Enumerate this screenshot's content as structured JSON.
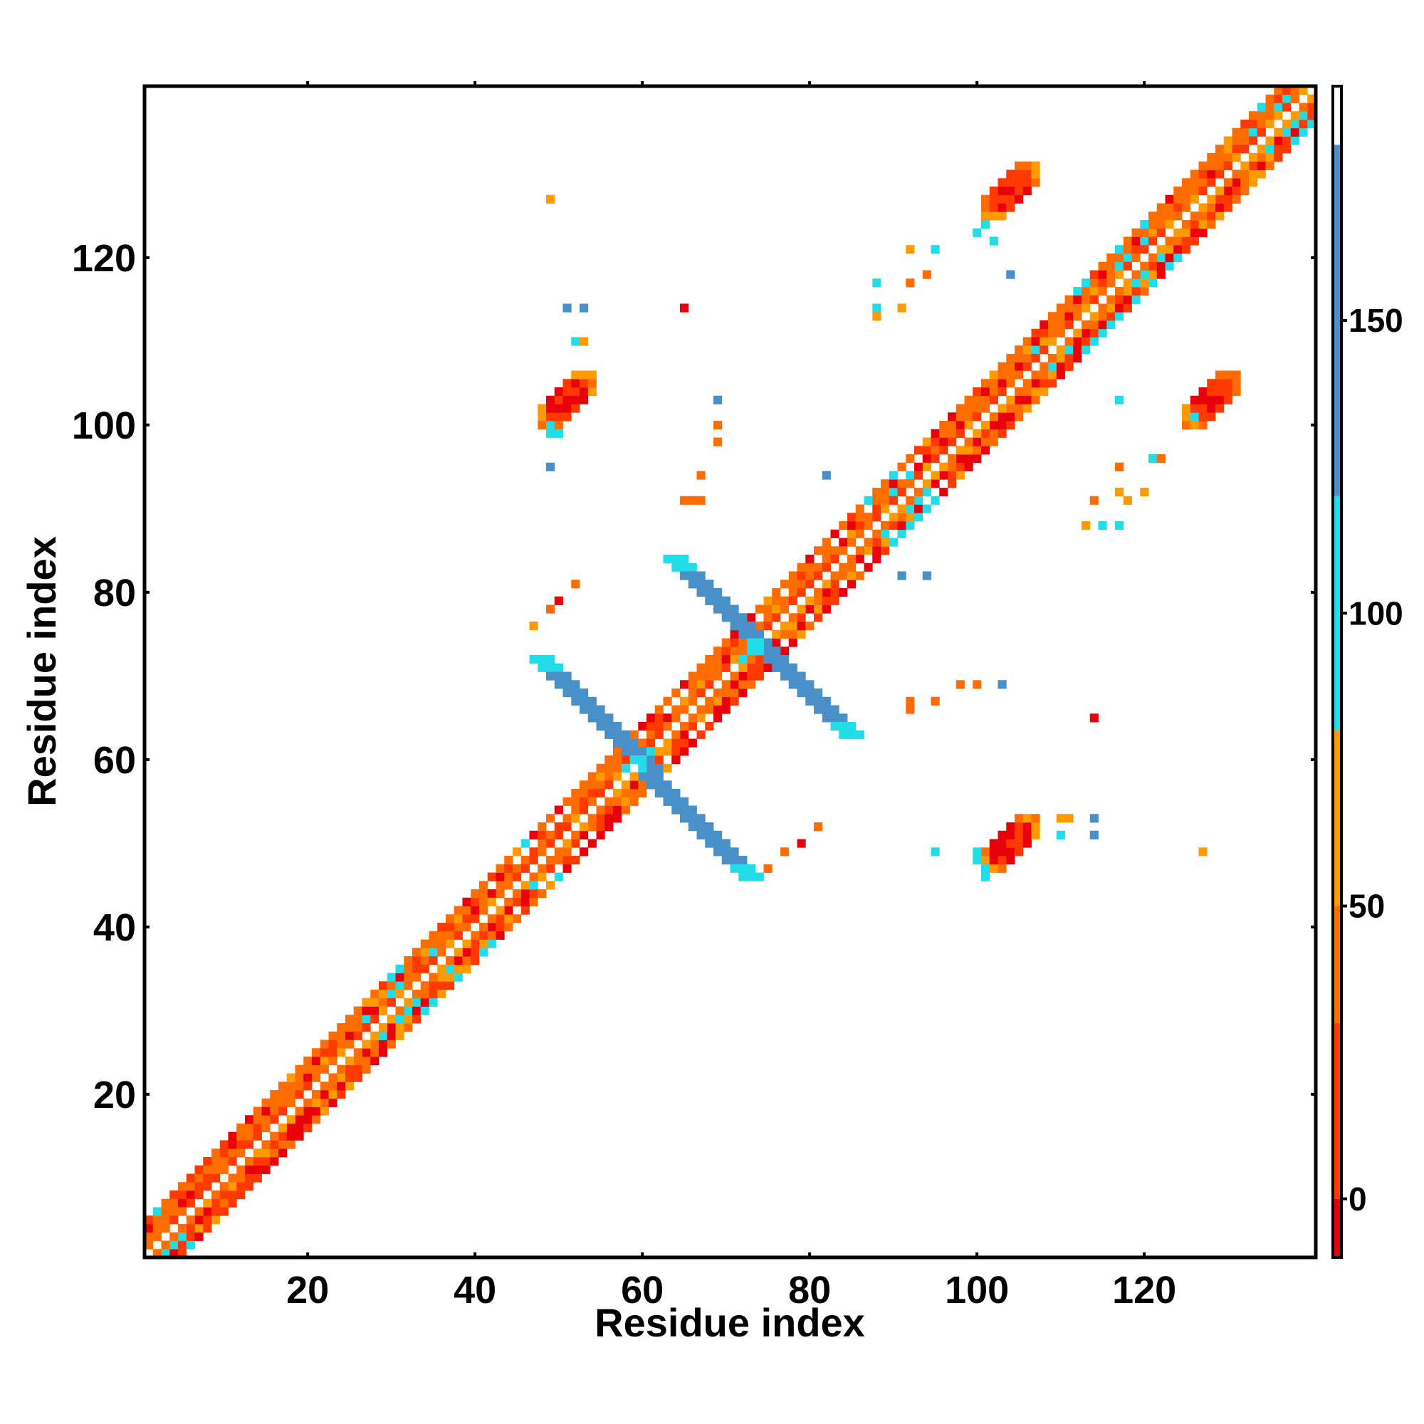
{
  "chart_data": {
    "type": "heatmap",
    "title": "",
    "xlabel": "Residue index",
    "ylabel": "Residue index",
    "xlim": [
      1,
      140
    ],
    "ylim": [
      1,
      140
    ],
    "x_ticks": [
      20,
      40,
      60,
      80,
      100,
      120
    ],
    "y_ticks": [
      20,
      40,
      60,
      80,
      100,
      120
    ],
    "grid": false,
    "legend": "colorbar on right",
    "colorbar": {
      "range": [
        -10,
        190
      ],
      "ticks": [
        0,
        50,
        100,
        150
      ],
      "bands": [
        {
          "from": -10,
          "to": 0,
          "color": "#e8000b"
        },
        {
          "from": 0,
          "to": 30,
          "color": "#ff3a00"
        },
        {
          "from": 30,
          "to": 50,
          "color": "#ff6c00"
        },
        {
          "from": 50,
          "to": 80,
          "color": "#ff9a00"
        },
        {
          "from": 80,
          "to": 120,
          "color": "#22dde8"
        },
        {
          "from": 120,
          "to": 180,
          "color": "#4a90c8"
        },
        {
          "from": 180,
          "to": 190,
          "color": "#ffffff"
        }
      ]
    },
    "category_colors": {
      "red": "#e8000b",
      "red_orange": "#ff3a00",
      "orange": "#ff6c00",
      "light_orange": "#ff9a00",
      "cyan": "#22dde8",
      "steel_blue": "#4a90c8"
    },
    "features": [
      {
        "name": "main diagonal band",
        "kind": "diagonal",
        "from": 1,
        "to": 140,
        "color": "mixed red/orange/cyan"
      },
      {
        "name": "cross arm 1",
        "kind": "anti-diagonal",
        "start": [
          47,
          72
        ],
        "end": [
          72,
          46
        ],
        "color": "steel_blue"
      },
      {
        "name": "cross arm 2",
        "kind": "anti-diagonal",
        "start": [
          63,
          84
        ],
        "end": [
          84,
          63
        ],
        "color": "steel_blue"
      },
      {
        "name": "cluster",
        "center": [
          104,
          128
        ],
        "color": "red_orange"
      },
      {
        "name": "cluster",
        "center": [
          50,
          103
        ],
        "color": "red_orange"
      },
      {
        "name": "cluster",
        "center": [
          128,
          103
        ],
        "color": "red_orange"
      },
      {
        "name": "cluster",
        "center": [
          104,
          49
        ],
        "color": "red_orange"
      }
    ],
    "scatter_cells": [
      {
        "x": 49,
        "y": 127,
        "color": "light_orange"
      },
      {
        "x": 51,
        "y": 114,
        "color": "steel_blue"
      },
      {
        "x": 53,
        "y": 114,
        "color": "steel_blue"
      },
      {
        "x": 65,
        "y": 114,
        "color": "red"
      },
      {
        "x": 52,
        "y": 110,
        "color": "cyan"
      },
      {
        "x": 53,
        "y": 110,
        "color": "light_orange"
      },
      {
        "x": 69,
        "y": 103,
        "color": "steel_blue"
      },
      {
        "x": 69,
        "y": 100,
        "color": "orange"
      },
      {
        "x": 69,
        "y": 98,
        "color": "orange"
      },
      {
        "x": 49,
        "y": 95,
        "color": "steel_blue"
      },
      {
        "x": 67,
        "y": 94,
        "color": "orange"
      },
      {
        "x": 65,
        "y": 91,
        "color": "orange"
      },
      {
        "x": 66,
        "y": 91,
        "color": "orange"
      },
      {
        "x": 67,
        "y": 91,
        "color": "orange"
      },
      {
        "x": 82,
        "y": 94,
        "color": "steel_blue"
      },
      {
        "x": 88,
        "y": 117,
        "color": "cyan"
      },
      {
        "x": 92,
        "y": 117,
        "color": "orange"
      },
      {
        "x": 92,
        "y": 121,
        "color": "light_orange"
      },
      {
        "x": 95,
        "y": 121,
        "color": "cyan"
      },
      {
        "x": 94,
        "y": 118,
        "color": "orange"
      },
      {
        "x": 91,
        "y": 114,
        "color": "light_orange"
      },
      {
        "x": 88,
        "y": 114,
        "color": "cyan"
      },
      {
        "x": 88,
        "y": 113,
        "color": "light_orange"
      },
      {
        "x": 104,
        "y": 118,
        "color": "steel_blue"
      },
      {
        "x": 102,
        "y": 122,
        "color": "cyan"
      },
      {
        "x": 117,
        "y": 103,
        "color": "cyan"
      },
      {
        "x": 117,
        "y": 95,
        "color": "orange"
      },
      {
        "x": 114,
        "y": 91,
        "color": "orange"
      },
      {
        "x": 117,
        "y": 92,
        "color": "light_orange"
      },
      {
        "x": 118,
        "y": 91,
        "color": "light_orange"
      },
      {
        "x": 120,
        "y": 92,
        "color": "light_orange"
      },
      {
        "x": 121,
        "y": 96,
        "color": "cyan"
      },
      {
        "x": 122,
        "y": 96,
        "color": "orange"
      },
      {
        "x": 113,
        "y": 88,
        "color": "light_orange"
      },
      {
        "x": 115,
        "y": 88,
        "color": "cyan"
      },
      {
        "x": 117,
        "y": 88,
        "color": "cyan"
      },
      {
        "x": 91,
        "y": 82,
        "color": "steel_blue"
      },
      {
        "x": 94,
        "y": 82,
        "color": "steel_blue"
      },
      {
        "x": 92,
        "y": 67,
        "color": "orange"
      },
      {
        "x": 92,
        "y": 66,
        "color": "orange"
      },
      {
        "x": 95,
        "y": 67,
        "color": "orange"
      },
      {
        "x": 98,
        "y": 69,
        "color": "orange"
      },
      {
        "x": 100,
        "y": 69,
        "color": "orange"
      },
      {
        "x": 103,
        "y": 69,
        "color": "steel_blue"
      },
      {
        "x": 114,
        "y": 65,
        "color": "red"
      },
      {
        "x": 110,
        "y": 53,
        "color": "light_orange"
      },
      {
        "x": 111,
        "y": 53,
        "color": "light_orange"
      },
      {
        "x": 114,
        "y": 53,
        "color": "steel_blue"
      },
      {
        "x": 110,
        "y": 51,
        "color": "cyan"
      },
      {
        "x": 114,
        "y": 51,
        "color": "steel_blue"
      },
      {
        "x": 127,
        "y": 49,
        "color": "light_orange"
      },
      {
        "x": 95,
        "y": 49,
        "color": "cyan"
      },
      {
        "x": 81,
        "y": 52,
        "color": "orange"
      },
      {
        "x": 79,
        "y": 50,
        "color": "red"
      },
      {
        "x": 77,
        "y": 49,
        "color": "orange"
      },
      {
        "x": 75,
        "y": 47,
        "color": "orange"
      },
      {
        "x": 52,
        "y": 81,
        "color": "orange"
      },
      {
        "x": 50,
        "y": 79,
        "color": "red"
      },
      {
        "x": 49,
        "y": 78,
        "color": "orange"
      },
      {
        "x": 47,
        "y": 76,
        "color": "light_orange"
      }
    ]
  }
}
